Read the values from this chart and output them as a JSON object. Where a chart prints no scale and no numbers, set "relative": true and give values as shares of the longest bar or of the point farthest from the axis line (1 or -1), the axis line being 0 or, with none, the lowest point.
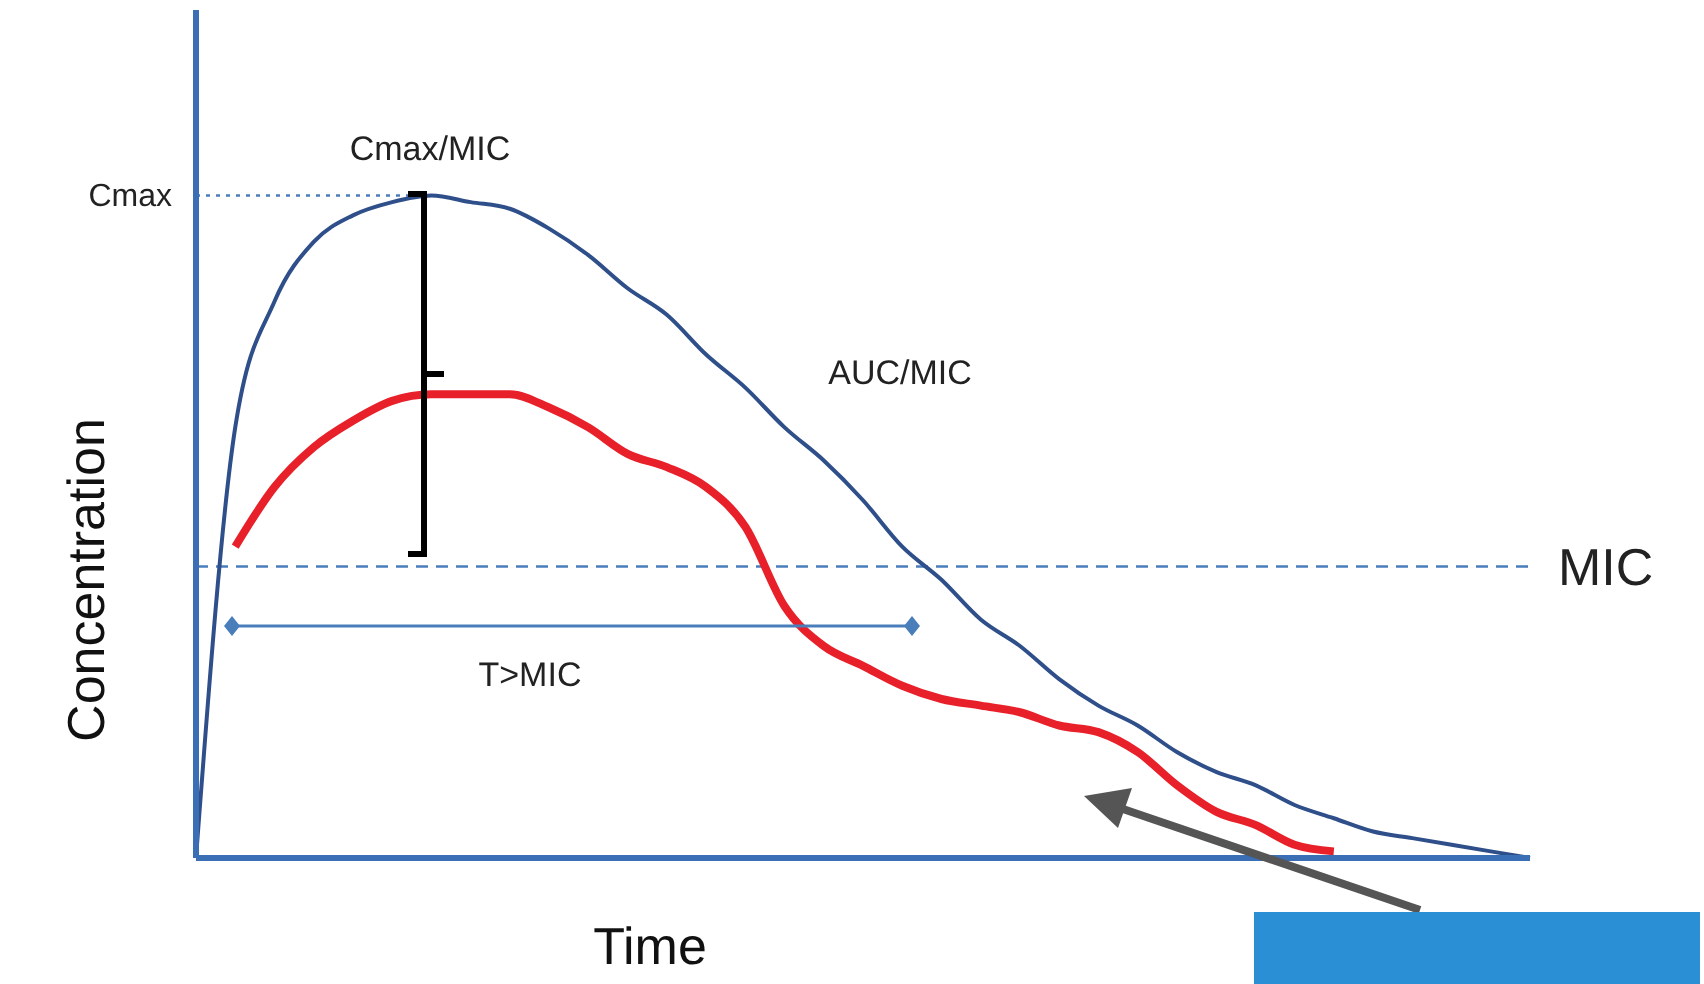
{
  "chart_data": {
    "type": "line",
    "relative": true,
    "xlabel": "Time",
    "ylabel": "Concentration",
    "categories": [
      null,
      null,
      null,
      null,
      null,
      null,
      null,
      null,
      null,
      null,
      null,
      null,
      null,
      null,
      null,
      null,
      null,
      null,
      null,
      null,
      null,
      null,
      null,
      null,
      null,
      null,
      null,
      null,
      null,
      null,
      null,
      null,
      null,
      null,
      null
    ],
    "series": [
      {
        "color": "#2f4f8a",
        "values": [
          0,
          0.65,
          0.84,
          0.93,
          0.97,
          0.99,
          1,
          0.99,
          0.98,
          0.95,
          0.91,
          0.86,
          0.82,
          0.76,
          0.71,
          0.65,
          0.6,
          0.54,
          0.47,
          0.42,
          0.36,
          0.32,
          0.27,
          0.23,
          0.2,
          0.16,
          0.13,
          0.11,
          0.08,
          0.06,
          0.04,
          0.03,
          0.02,
          0.01,
          0
        ]
      },
      {
        "color": "#e8202a",
        "values": [
          null,
          0.47,
          0.56,
          0.62,
          0.66,
          0.69,
          0.7,
          0.7,
          0.7,
          0.68,
          0.65,
          0.61,
          0.59,
          0.56,
          0.5,
          0.38,
          0.32,
          0.29,
          0.26,
          0.24,
          0.23,
          0.22,
          0.2,
          0.19,
          0.16,
          0.11,
          0.07,
          0.05,
          0.02,
          0.01,
          null,
          null,
          null,
          null,
          null
        ]
      }
    ],
    "ref_lines": [
      {
        "axis": "y",
        "value": 1,
        "label": "Cmax",
        "color": "#4a7ebb",
        "line_style": "dotted"
      },
      {
        "axis": "y",
        "value": 0.44,
        "label": "MIC",
        "color": "#4a7ebb",
        "line_style": "dashed"
      }
    ],
    "annotations": [
      "Cmax/MIC",
      "AUC/MIC",
      "T>MIC"
    ],
    "grid": false,
    "legend": false,
    "marker": "none",
    "line_style": "solid"
  }
}
